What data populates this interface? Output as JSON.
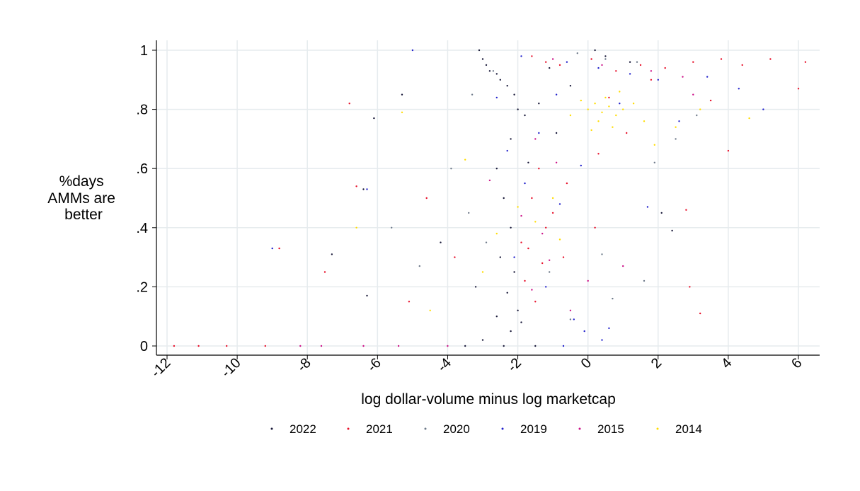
{
  "chart_data": {
    "type": "scatter",
    "title": "",
    "xlabel": "log dollar-volume minus log marketcap",
    "ylabel_lines": [
      "%days",
      "AMMs are",
      "better"
    ],
    "xlim": [
      -12.3,
      6.5
    ],
    "ylim": [
      -0.03,
      1.03
    ],
    "x_ticks": [
      -12,
      -10,
      -8,
      -6,
      -4,
      -2,
      0,
      2,
      4,
      6
    ],
    "x_tick_labels": [
      "-12",
      "-10",
      "-8",
      "-6",
      "-4",
      "-2",
      "0",
      "2",
      "4",
      "6"
    ],
    "y_ticks": [
      0,
      0.2,
      0.4,
      0.6,
      0.8,
      1
    ],
    "y_tick_labels": [
      "0",
      ".2",
      ".4",
      ".6",
      ".8",
      "1"
    ],
    "grid": true,
    "legend_position": "bottom",
    "series": [
      {
        "name": "2022",
        "color": "#1a1a3a",
        "points": [
          [
            -3.1,
            1.0
          ],
          [
            -3.0,
            0.97
          ],
          [
            -2.9,
            0.95
          ],
          [
            -2.8,
            0.93
          ],
          [
            -2.6,
            0.92
          ],
          [
            -2.5,
            0.9
          ],
          [
            -2.3,
            0.88
          ],
          [
            -2.1,
            0.85
          ],
          [
            -2.0,
            0.8
          ],
          [
            -1.8,
            0.78
          ],
          [
            -2.2,
            0.7
          ],
          [
            -2.6,
            0.6
          ],
          [
            -2.4,
            0.5
          ],
          [
            -2.2,
            0.4
          ],
          [
            -2.5,
            0.3
          ],
          [
            -2.1,
            0.25
          ],
          [
            -2.3,
            0.18
          ],
          [
            -2.0,
            0.12
          ],
          [
            -1.9,
            0.08
          ],
          [
            -2.2,
            0.05
          ],
          [
            -2.6,
            0.1
          ],
          [
            -3.2,
            0.2
          ],
          [
            -3.0,
            0.02
          ],
          [
            -2.4,
            0.0
          ],
          [
            -1.5,
            0.0
          ],
          [
            -3.5,
            0.0
          ],
          [
            -4.2,
            0.35
          ],
          [
            -5.3,
            0.85
          ],
          [
            -6.1,
            0.77
          ],
          [
            -6.4,
            0.53
          ],
          [
            -7.3,
            0.31
          ],
          [
            -6.3,
            0.17
          ],
          [
            0.2,
            1.0
          ],
          [
            0.5,
            0.98
          ],
          [
            1.2,
            0.96
          ],
          [
            -1.1,
            0.94
          ],
          [
            -0.5,
            0.88
          ],
          [
            -1.4,
            0.82
          ],
          [
            -0.9,
            0.72
          ],
          [
            -1.7,
            0.62
          ],
          [
            2.1,
            0.45
          ],
          [
            2.4,
            0.39
          ]
        ]
      },
      {
        "name": "2021",
        "color": "#e8102a",
        "points": [
          [
            -1.6,
            0.98
          ],
          [
            -1.2,
            0.96
          ],
          [
            -0.8,
            0.95
          ],
          [
            0.1,
            0.97
          ],
          [
            0.8,
            0.93
          ],
          [
            1.5,
            0.95
          ],
          [
            2.2,
            0.94
          ],
          [
            3.0,
            0.96
          ],
          [
            3.8,
            0.97
          ],
          [
            4.4,
            0.95
          ],
          [
            5.2,
            0.97
          ],
          [
            6.2,
            0.96
          ],
          [
            6.0,
            0.87
          ],
          [
            -1.4,
            0.6
          ],
          [
            -1.6,
            0.5
          ],
          [
            -1.2,
            0.4
          ],
          [
            -1.7,
            0.33
          ],
          [
            -1.3,
            0.28
          ],
          [
            -1.8,
            0.22
          ],
          [
            -1.5,
            0.15
          ],
          [
            -1.9,
            0.35
          ],
          [
            -1.0,
            0.45
          ],
          [
            -0.6,
            0.55
          ],
          [
            0.3,
            0.65
          ],
          [
            1.1,
            0.72
          ],
          [
            2.8,
            0.46
          ],
          [
            2.9,
            0.2
          ],
          [
            3.2,
            0.11
          ],
          [
            -6.8,
            0.82
          ],
          [
            -6.6,
            0.54
          ],
          [
            -7.5,
            0.25
          ],
          [
            -8.8,
            0.33
          ],
          [
            -9.2,
            0.0
          ],
          [
            -10.3,
            0.0
          ],
          [
            -11.8,
            0.0
          ],
          [
            -11.1,
            0.0
          ],
          [
            -4.6,
            0.5
          ],
          [
            -5.1,
            0.15
          ],
          [
            -3.8,
            0.3
          ],
          [
            0.6,
            0.84
          ],
          [
            1.8,
            0.9
          ],
          [
            4.0,
            0.66
          ],
          [
            3.5,
            0.83
          ],
          [
            -0.7,
            0.3
          ],
          [
            0.2,
            0.4
          ]
        ]
      },
      {
        "name": "2020",
        "color": "#6e7a8a",
        "points": [
          [
            -0.3,
            0.99
          ],
          [
            0.5,
            0.97
          ],
          [
            1.4,
            0.96
          ],
          [
            -2.7,
            0.93
          ],
          [
            -3.3,
            0.85
          ],
          [
            -3.9,
            0.6
          ],
          [
            -3.4,
            0.45
          ],
          [
            -2.9,
            0.35
          ],
          [
            -1.1,
            0.25
          ],
          [
            0.4,
            0.31
          ],
          [
            1.9,
            0.62
          ],
          [
            2.5,
            0.7
          ],
          [
            3.1,
            0.78
          ],
          [
            -4.8,
            0.27
          ],
          [
            -5.6,
            0.4
          ],
          [
            -0.5,
            0.09
          ],
          [
            0.7,
            0.16
          ],
          [
            1.6,
            0.22
          ]
        ]
      },
      {
        "name": "2019",
        "color": "#2222cc",
        "points": [
          [
            -5.0,
            1.0
          ],
          [
            -1.9,
            0.98
          ],
          [
            -0.6,
            0.96
          ],
          [
            0.3,
            0.94
          ],
          [
            1.2,
            0.92
          ],
          [
            2.0,
            0.9
          ],
          [
            3.4,
            0.91
          ],
          [
            4.3,
            0.87
          ],
          [
            5.0,
            0.8
          ],
          [
            -0.9,
            0.85
          ],
          [
            -1.4,
            0.72
          ],
          [
            -2.3,
            0.66
          ],
          [
            -1.8,
            0.55
          ],
          [
            -0.8,
            0.48
          ],
          [
            -2.1,
            0.3
          ],
          [
            -1.2,
            0.2
          ],
          [
            -0.4,
            0.09
          ],
          [
            -0.1,
            0.05
          ],
          [
            0.4,
            0.02
          ],
          [
            -0.7,
            0.0
          ],
          [
            0.6,
            0.06
          ],
          [
            1.7,
            0.47
          ],
          [
            -6.3,
            0.53
          ],
          [
            -9.0,
            0.33
          ],
          [
            -0.2,
            0.61
          ],
          [
            0.9,
            0.82
          ],
          [
            -2.6,
            0.84
          ],
          [
            2.6,
            0.76
          ]
        ]
      },
      {
        "name": "2015",
        "color": "#cc1188",
        "points": [
          [
            -1.0,
            0.97
          ],
          [
            0.4,
            0.95
          ],
          [
            1.8,
            0.93
          ],
          [
            2.7,
            0.91
          ],
          [
            -1.5,
            0.7
          ],
          [
            -0.9,
            0.62
          ],
          [
            -1.9,
            0.44
          ],
          [
            -1.3,
            0.38
          ],
          [
            -1.1,
            0.29
          ],
          [
            -1.6,
            0.19
          ],
          [
            -0.5,
            0.12
          ],
          [
            -7.6,
            0.0
          ],
          [
            -8.2,
            0.0
          ],
          [
            -6.4,
            0.0
          ],
          [
            -5.4,
            0.0
          ],
          [
            -4.0,
            0.0
          ],
          [
            0.0,
            0.22
          ],
          [
            1.0,
            0.27
          ],
          [
            -2.8,
            0.56
          ],
          [
            3.0,
            0.85
          ]
        ]
      },
      {
        "name": "2014",
        "color": "#ffdd00",
        "points": [
          [
            0.0,
            0.8
          ],
          [
            0.2,
            0.82
          ],
          [
            0.4,
            0.79
          ],
          [
            0.6,
            0.81
          ],
          [
            0.8,
            0.78
          ],
          [
            1.0,
            0.8
          ],
          [
            0.3,
            0.76
          ],
          [
            0.5,
            0.84
          ],
          [
            -0.2,
            0.83
          ],
          [
            1.3,
            0.82
          ],
          [
            0.9,
            0.86
          ],
          [
            -0.5,
            0.78
          ],
          [
            1.6,
            0.76
          ],
          [
            0.1,
            0.73
          ],
          [
            0.7,
            0.74
          ],
          [
            -1.0,
            0.5
          ],
          [
            -1.5,
            0.42
          ],
          [
            -0.8,
            0.36
          ],
          [
            -2.0,
            0.47
          ],
          [
            -3.5,
            0.63
          ],
          [
            -5.3,
            0.79
          ],
          [
            -6.6,
            0.4
          ],
          [
            -4.5,
            0.12
          ],
          [
            -3.0,
            0.25
          ],
          [
            1.9,
            0.68
          ],
          [
            2.5,
            0.74
          ],
          [
            3.2,
            0.8
          ],
          [
            4.6,
            0.77
          ],
          [
            -2.6,
            0.38
          ]
        ]
      }
    ]
  }
}
